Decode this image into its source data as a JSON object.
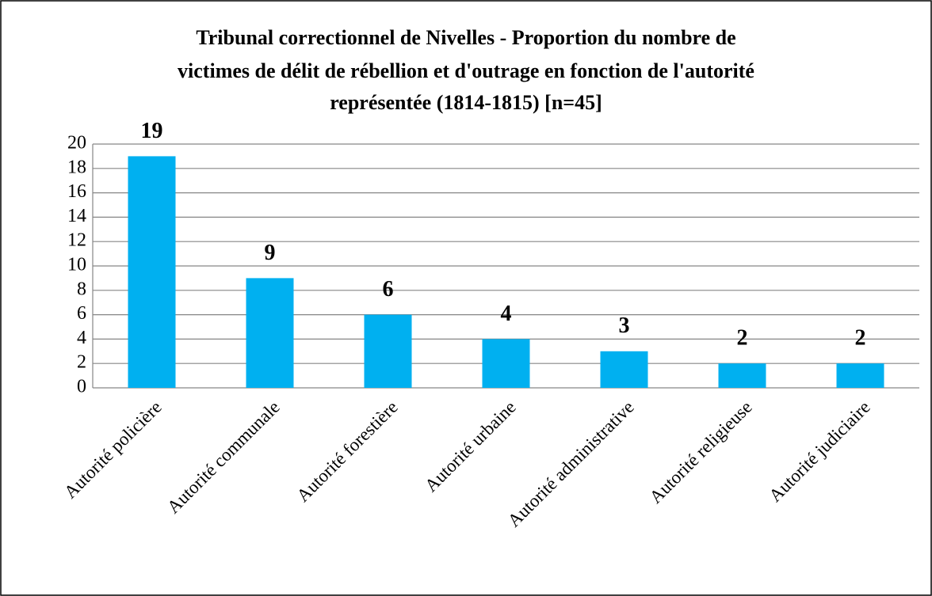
{
  "chart_data": {
    "type": "bar",
    "title": [
      "Tribunal correctionnel de Nivelles - Proportion du nombre de",
      "victimes de délit de rébellion et d'outrage en fonction de l'autorité",
      "représentée (1814-1815) [n=45]"
    ],
    "categories": [
      "Autorité policière",
      "Autorité communale",
      "Autorité forestière",
      "Autorité urbaine",
      "Autorité administrative",
      "Autorité religieuse",
      "Autorité judiciaire"
    ],
    "values": [
      19,
      9,
      6,
      4,
      3,
      2,
      2
    ],
    "color": "#00b0f0",
    "ylim": [
      0,
      20
    ],
    "yticks": [
      0,
      2,
      4,
      6,
      8,
      10,
      12,
      14,
      16,
      18,
      20
    ],
    "grid": true
  }
}
